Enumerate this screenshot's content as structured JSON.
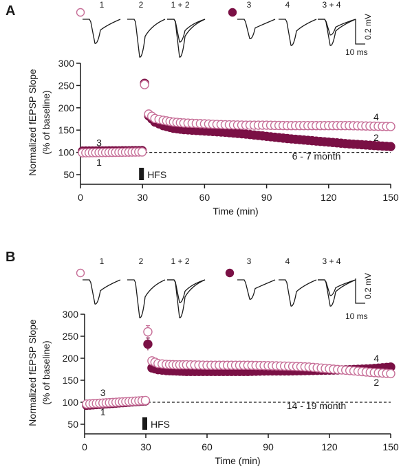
{
  "colors": {
    "open_series": "#c76f98",
    "filled_series": "#7a1045",
    "axis": "#1a1a1a"
  },
  "chart_data": [
    {
      "panel_label": "A",
      "type": "scatter",
      "x_label": "Time (min)",
      "y_label_line1": "Normalized fEPSP Slope",
      "y_label_line2": "(% of baseline)",
      "xlim": [
        0,
        150
      ],
      "ylim": [
        50,
        300
      ],
      "x_ticks": [
        0,
        30,
        60,
        90,
        120,
        150
      ],
      "y_ticks": [
        50,
        100,
        150,
        200,
        250,
        300
      ],
      "baseline": 100,
      "age_label": "6 - 7 month",
      "stimulus": {
        "label": "HFS",
        "time": 30
      },
      "trace_labels": [
        "1",
        "2",
        "1 + 2",
        "3",
        "4",
        "3 + 4"
      ],
      "scale_bar": {
        "voltage": "0.2 mV",
        "time": "10 ms"
      },
      "annotations": [
        {
          "text": "3",
          "x": 9,
          "y": 122
        },
        {
          "text": "1",
          "x": 9,
          "y": 78
        },
        {
          "text": "4",
          "x": 143,
          "y": 180
        },
        {
          "text": "2",
          "x": 143,
          "y": 133
        }
      ],
      "series": [
        {
          "style": "filled",
          "name_symbol": "filled-circle",
          "baseline_x": [
            1,
            30
          ],
          "baseline_y": [
            103,
            104
          ],
          "post_x": [
            31,
            33,
            36,
            40,
            45,
            50,
            60,
            70,
            80,
            90,
            100,
            110,
            120,
            130,
            140,
            150
          ],
          "post_y": [
            255,
            182,
            168,
            160,
            154,
            151,
            148,
            145,
            141,
            136,
            131,
            127,
            123,
            119,
            116,
            113
          ],
          "post_err": [
            8,
            7,
            0,
            0,
            0,
            0,
            0,
            0,
            0,
            0,
            0,
            0,
            0,
            0,
            0,
            0
          ]
        },
        {
          "style": "open",
          "name_symbol": "open-circle",
          "baseline_x": [
            1,
            30
          ],
          "baseline_y": [
            99,
            101
          ],
          "post_x": [
            31,
            33,
            36,
            40,
            45,
            50,
            60,
            70,
            80,
            90,
            100,
            110,
            120,
            130,
            140,
            150
          ],
          "post_y": [
            252,
            186,
            176,
            172,
            168,
            166,
            164,
            162,
            161,
            161,
            160,
            160,
            160,
            160,
            159,
            158
          ],
          "post_err": [
            10,
            8,
            0,
            0,
            0,
            0,
            0,
            0,
            0,
            0,
            0,
            0,
            0,
            0,
            0,
            0
          ]
        }
      ]
    },
    {
      "panel_label": "B",
      "type": "scatter",
      "x_label": "Time (min)",
      "y_label_line1": "Normalized fEPSP Slope",
      "y_label_line2": "(% of baseline)",
      "xlim": [
        0,
        150
      ],
      "ylim": [
        50,
        300
      ],
      "x_ticks": [
        0,
        30,
        60,
        90,
        120,
        150
      ],
      "y_ticks": [
        50,
        100,
        150,
        200,
        250,
        300
      ],
      "baseline": 100,
      "age_label": "14 - 19 month",
      "stimulus": {
        "label": "HFS",
        "time": 30
      },
      "trace_labels": [
        "1",
        "2",
        "1 + 2",
        "3",
        "4",
        "3 + 4"
      ],
      "scale_bar": {
        "voltage": "0.2 mV",
        "time": "10 ms"
      },
      "annotations": [
        {
          "text": "3",
          "x": 9,
          "y": 122
        },
        {
          "text": "1",
          "x": 9,
          "y": 78
        },
        {
          "text": "4",
          "x": 143,
          "y": 200
        },
        {
          "text": "2",
          "x": 143,
          "y": 145
        }
      ],
      "series": [
        {
          "style": "filled",
          "name_symbol": "filled-circle",
          "baseline_x": [
            1,
            30
          ],
          "baseline_y": [
            93,
            103
          ],
          "post_x": [
            31,
            33,
            36,
            40,
            45,
            50,
            60,
            70,
            80,
            90,
            100,
            110,
            120,
            130,
            140,
            150
          ],
          "post_y": [
            232,
            178,
            174,
            172,
            171,
            170,
            170,
            170,
            170,
            171,
            171,
            172,
            173,
            174,
            176,
            180
          ],
          "post_err": [
            14,
            8,
            0,
            0,
            0,
            0,
            0,
            0,
            0,
            0,
            0,
            0,
            0,
            0,
            0,
            8
          ]
        },
        {
          "style": "open",
          "name_symbol": "open-circle",
          "baseline_x": [
            1,
            30
          ],
          "baseline_y": [
            96,
            104
          ],
          "post_x": [
            31,
            33,
            36,
            40,
            45,
            50,
            60,
            70,
            80,
            90,
            100,
            110,
            120,
            130,
            140,
            150
          ],
          "post_y": [
            260,
            194,
            188,
            186,
            185,
            185,
            184,
            184,
            184,
            183,
            182,
            180,
            176,
            172,
            168,
            165
          ],
          "post_err": [
            14,
            8,
            0,
            0,
            0,
            0,
            0,
            0,
            0,
            0,
            0,
            0,
            0,
            0,
            0,
            0
          ]
        }
      ]
    }
  ]
}
